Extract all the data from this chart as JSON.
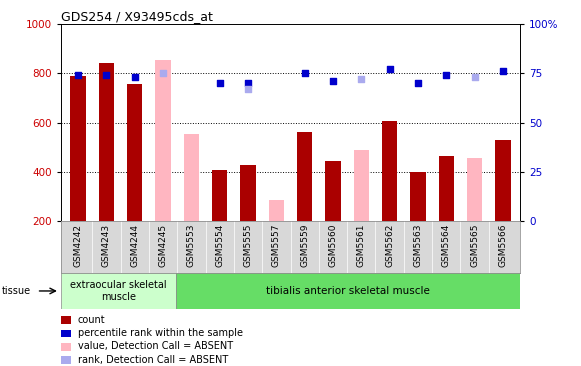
{
  "title": "GDS254 / X93495cds_at",
  "samples": [
    "GSM4242",
    "GSM4243",
    "GSM4244",
    "GSM4245",
    "GSM5553",
    "GSM5554",
    "GSM5555",
    "GSM5557",
    "GSM5559",
    "GSM5560",
    "GSM5561",
    "GSM5562",
    "GSM5563",
    "GSM5564",
    "GSM5565",
    "GSM5566"
  ],
  "count_values": [
    790,
    840,
    755,
    null,
    null,
    410,
    430,
    null,
    560,
    445,
    null,
    605,
    400,
    465,
    null,
    530
  ],
  "absent_value": [
    null,
    null,
    null,
    855,
    555,
    null,
    null,
    285,
    null,
    null,
    490,
    null,
    null,
    null,
    455,
    null
  ],
  "percentile_rank": [
    74,
    74,
    73,
    null,
    null,
    70,
    70,
    null,
    75,
    71,
    null,
    77,
    70,
    74,
    null,
    76
  ],
  "absent_rank": [
    null,
    null,
    null,
    75,
    null,
    null,
    67,
    null,
    null,
    null,
    72,
    null,
    null,
    null,
    73,
    null
  ],
  "ylim_left": [
    200,
    1000
  ],
  "ylim_right": [
    0,
    100
  ],
  "yticks_left": [
    200,
    400,
    600,
    800,
    1000
  ],
  "yticks_right": [
    0,
    25,
    50,
    75,
    100
  ],
  "bar_color_present": "#aa0000",
  "bar_color_absent": "#ffb6c1",
  "dot_color_present": "#0000cc",
  "dot_color_absent": "#aaaaee",
  "bg_color_extraocular": "#ccffcc",
  "bg_color_tibialis": "#66dd66",
  "n_extraocular": 4,
  "n_tibialis": 12,
  "bar_width": 0.55,
  "dotsize": 18,
  "grid_lines": [
    400,
    600,
    800
  ],
  "legend": [
    {
      "color": "#aa0000",
      "label": "count"
    },
    {
      "color": "#0000cc",
      "label": "percentile rank within the sample"
    },
    {
      "color": "#ffb6c1",
      "label": "value, Detection Call = ABSENT"
    },
    {
      "color": "#aaaaee",
      "label": "rank, Detection Call = ABSENT"
    }
  ]
}
